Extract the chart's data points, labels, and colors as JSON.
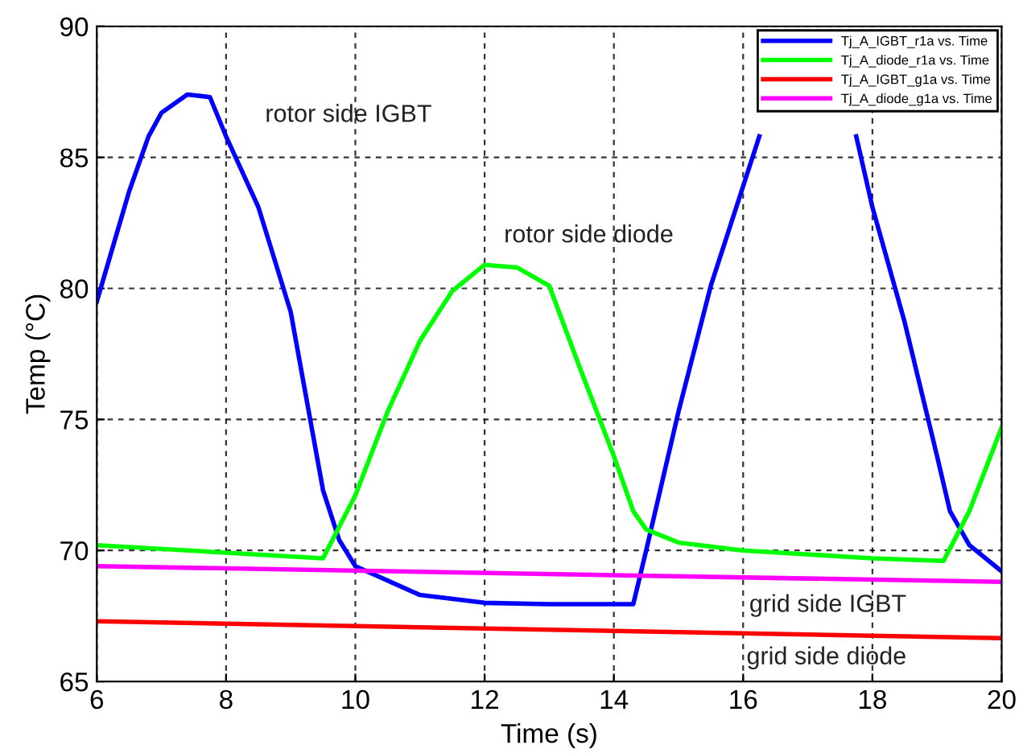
{
  "chart_data": {
    "type": "line",
    "xlabel": "Time (s)",
    "ylabel": "Temp (°C)",
    "xlim": [
      6,
      20
    ],
    "ylim": [
      65,
      90
    ],
    "xticks": [
      6,
      8,
      10,
      12,
      14,
      16,
      18,
      20
    ],
    "yticks": [
      65,
      70,
      75,
      80,
      85,
      90
    ],
    "grid": true,
    "legend": "top right",
    "line_style": "solid",
    "marker": "none",
    "series": [
      {
        "name": "Tj_A_IGBT_r1a vs. Time",
        "color": "#0000ff",
        "x": [
          6,
          6.25,
          6.5,
          6.8,
          7,
          7.4,
          7.75,
          8,
          8.5,
          9,
          9.5,
          9.75,
          10,
          11,
          12,
          13,
          14.3,
          14.5,
          15,
          15.5,
          16,
          16.25,
          16.4,
          17.6,
          17.75,
          18,
          18.5,
          19,
          19.2,
          19.5,
          20
        ],
        "values": [
          79.5,
          81.6,
          83.7,
          85.8,
          86.7,
          87.4,
          87.3,
          85.8,
          83.1,
          79.1,
          72.3,
          70.4,
          69.4,
          68.3,
          68.0,
          67.95,
          67.95,
          70.0,
          75.3,
          80.1,
          83.9,
          85.8,
          null,
          null,
          85.8,
          83.1,
          78.7,
          73.6,
          71.5,
          70.2,
          69.2
        ]
      },
      {
        "name": "Tj_A_diode_r1a vs. Time",
        "color": "#00ff00",
        "x": [
          6,
          9.5,
          10,
          10.5,
          11,
          11.5,
          12,
          12.5,
          13,
          13.5,
          14,
          14.3,
          14.5,
          15,
          16,
          18,
          19.1,
          19.5,
          20
        ],
        "values": [
          70.2,
          69.7,
          72.1,
          75.3,
          78.0,
          79.9,
          80.9,
          80.8,
          80.1,
          76.8,
          73.6,
          71.5,
          70.8,
          70.3,
          70.0,
          69.7,
          69.6,
          71.5,
          74.7
        ]
      },
      {
        "name": "Tj_A_IGBT_g1a vs. Time",
        "color": "#ff0000",
        "x": [
          6,
          20
        ],
        "values": [
          67.3,
          66.65
        ]
      },
      {
        "name": "Tj_A_diode_g1a vs. Time",
        "color": "#ff00ff",
        "x": [
          6,
          20
        ],
        "values": [
          69.4,
          68.8
        ]
      }
    ],
    "annotations": [
      "rotor side IGBT",
      "rotor side diode",
      "grid side IGBT",
      "grid side diode"
    ]
  }
}
